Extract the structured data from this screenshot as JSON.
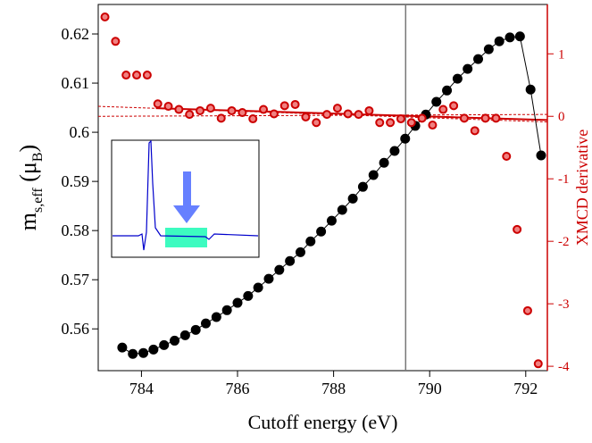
{
  "chart_data": {
    "type": "scatter",
    "xlabel": "Cutoff energy (eV)",
    "ylabel_parts": [
      "m",
      "s,eff",
      " (μ",
      "B",
      ")"
    ],
    "y2label": "XMCD derivative",
    "xlim": [
      783.1,
      792.45
    ],
    "xticks": [
      784,
      786,
      788,
      790,
      792
    ],
    "ylim": [
      0.5515,
      0.626
    ],
    "yticks": [
      0.56,
      0.57,
      0.58,
      0.59,
      0.6,
      0.61,
      0.62
    ],
    "y2lim": [
      -4.07,
      1.79
    ],
    "y2ticks": [
      -4,
      -3,
      -2,
      -1,
      0,
      1
    ],
    "vline": 789.5,
    "series": [
      {
        "color": "#000000",
        "line": true,
        "x": [
          783.6,
          783.82,
          784.04,
          784.25,
          784.47,
          784.69,
          784.91,
          785.13,
          785.34,
          785.56,
          785.78,
          786.0,
          786.22,
          786.43,
          786.65,
          786.87,
          787.09,
          787.31,
          787.52,
          787.74,
          787.96,
          788.18,
          788.4,
          788.61,
          788.83,
          789.05,
          789.27,
          789.49,
          789.7,
          789.92,
          790.14,
          790.36,
          790.58,
          790.79,
          791.01,
          791.23,
          791.45,
          791.67,
          791.88,
          792.1,
          792.32
        ],
        "values": [
          0.5562,
          0.5549,
          0.5551,
          0.5558,
          0.5567,
          0.5576,
          0.5587,
          0.5598,
          0.5611,
          0.5624,
          0.5638,
          0.5653,
          0.5667,
          0.5684,
          0.5702,
          0.572,
          0.5738,
          0.5756,
          0.5778,
          0.5798,
          0.582,
          0.5842,
          0.5865,
          0.5889,
          0.5913,
          0.5938,
          0.5962,
          0.5987,
          0.6013,
          0.6036,
          0.6062,
          0.6085,
          0.6109,
          0.6129,
          0.6149,
          0.6169,
          0.6185,
          0.6193,
          0.6195,
          0.6087,
          0.5953
        ]
      },
      {
        "color": "#cc0000",
        "axis": "y2",
        "x": [
          783.24,
          783.46,
          783.68,
          783.9,
          784.12,
          784.34,
          784.56,
          784.78,
          785.0,
          785.22,
          785.44,
          785.66,
          785.88,
          786.1,
          786.32,
          786.54,
          786.76,
          786.98,
          787.2,
          787.42,
          787.64,
          787.86,
          788.08,
          788.3,
          788.52,
          788.74,
          788.96,
          789.18,
          789.4,
          789.62,
          789.84,
          790.06,
          790.28,
          790.5,
          790.72,
          790.94,
          791.16,
          791.38,
          791.6,
          791.82,
          792.04,
          792.26
        ],
        "values": [
          1.59,
          1.2,
          0.66,
          0.66,
          0.66,
          0.2,
          0.16,
          0.11,
          0.03,
          0.09,
          0.13,
          -0.03,
          0.09,
          0.06,
          -0.04,
          0.11,
          0.04,
          0.17,
          0.19,
          -0.01,
          -0.1,
          0.03,
          0.13,
          0.04,
          0.03,
          0.09,
          -0.1,
          -0.1,
          -0.04,
          -0.1,
          -0.03,
          -0.14,
          0.11,
          0.17,
          -0.03,
          -0.23,
          -0.03,
          -0.03,
          -0.64,
          -1.81,
          -3.11,
          -3.96
        ]
      }
    ],
    "fits": [
      {
        "x": [
          784.3,
          792.45
        ],
        "values": [
          0.13,
          -0.06
        ],
        "dash": false,
        "color": "#cc0000"
      },
      {
        "x": [
          783.1,
          792.45
        ],
        "values": [
          0.16,
          -0.09
        ],
        "dash": true,
        "color": "#cc0000"
      },
      {
        "x": [
          783.1,
          792.45
        ],
        "values": [
          0.0,
          0.03
        ],
        "dash": true,
        "color": "#cc0000"
      }
    ]
  }
}
